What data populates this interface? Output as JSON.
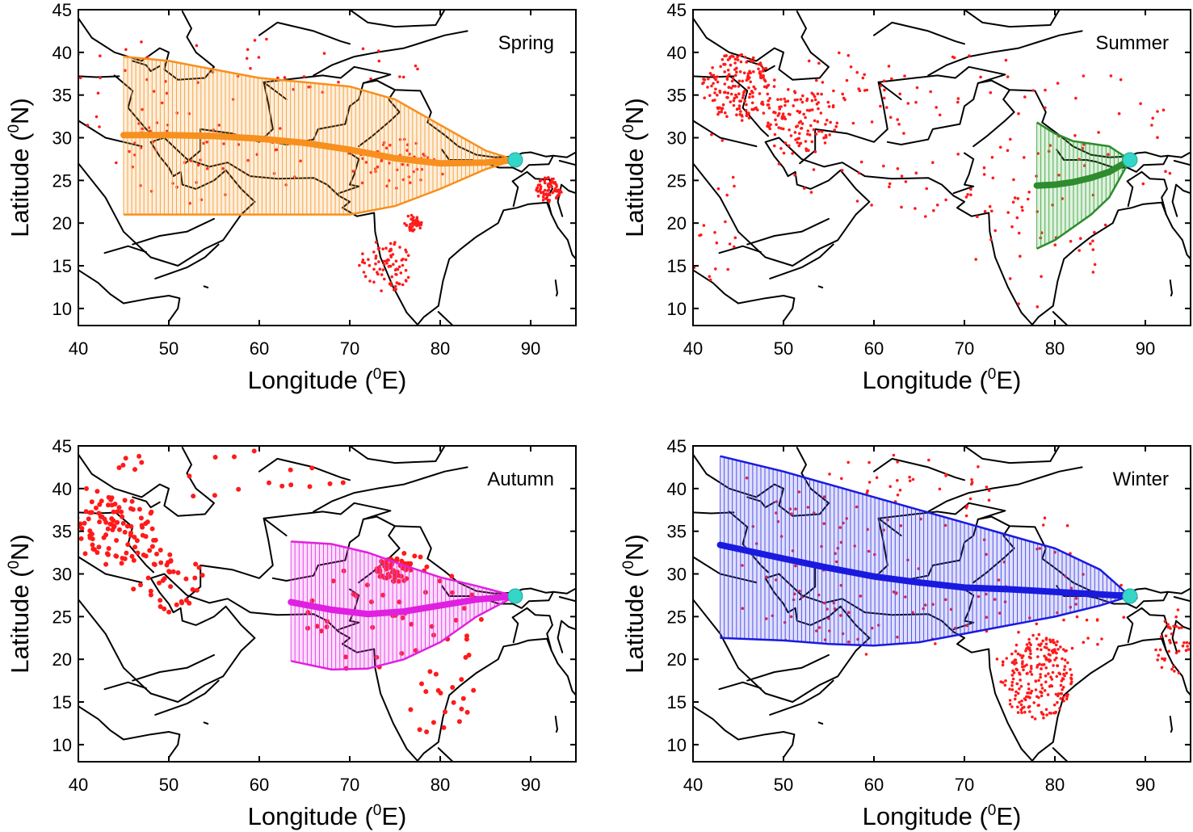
{
  "colors": {
    "fire_points": "#ff1a1a",
    "receptor_site": "#33d6c8",
    "coastline": "#000000"
  },
  "axis_labels": {
    "x_prefix": "Longitude (",
    "x_sup": "0",
    "x_suffix": "E)",
    "y_prefix": "Latitude (",
    "y_sup": "0",
    "y_suffix": "N)"
  },
  "chart_data": [
    {
      "type": "line",
      "title": "Spring",
      "xlim": [
        40,
        95
      ],
      "ylim": [
        8,
        45
      ],
      "xticks": [
        40,
        50,
        60,
        70,
        80,
        90
      ],
      "yticks": [
        10,
        15,
        20,
        25,
        30,
        35,
        40,
        45
      ],
      "color": "#f7901e",
      "error_fill": "#f7a445",
      "receptor": {
        "lon": 88.3,
        "lat": 27.4
      },
      "series": [
        {
          "x": [
            45,
            50,
            55,
            60,
            65,
            70,
            75,
            80,
            85,
            88.3
          ],
          "y": [
            30.3,
            30.3,
            30.2,
            29.9,
            29.4,
            28.6,
            27.6,
            27.0,
            27.1,
            27.4
          ],
          "upper": [
            39.5,
            39.0,
            38.0,
            37.0,
            36.5,
            36.0,
            34.5,
            31.5,
            28.5,
            27.4
          ],
          "lower": [
            21.0,
            21.0,
            21.0,
            21.0,
            21.0,
            21.0,
            22.0,
            24.0,
            26.3,
            27.4
          ]
        }
      ]
    },
    {
      "type": "line",
      "title": "Summer",
      "xlim": [
        40,
        95
      ],
      "ylim": [
        8,
        45
      ],
      "xticks": [
        40,
        50,
        60,
        70,
        80,
        90
      ],
      "yticks": [
        10,
        15,
        20,
        25,
        30,
        35,
        40,
        45
      ],
      "color": "#2e8b2e",
      "error_fill": "#4caf4c",
      "receptor": {
        "lon": 88.3,
        "lat": 27.4
      },
      "series": [
        {
          "x": [
            78,
            80,
            82,
            84,
            86,
            88.3
          ],
          "y": [
            24.4,
            24.5,
            24.8,
            25.3,
            26.0,
            27.4
          ],
          "upper": [
            31.8,
            30.5,
            29.6,
            29.3,
            29.0,
            27.4
          ],
          "lower": [
            17.0,
            18.0,
            19.5,
            21.0,
            23.0,
            27.4
          ]
        }
      ]
    },
    {
      "type": "line",
      "title": "Autumn",
      "xlim": [
        40,
        95
      ],
      "ylim": [
        8,
        45
      ],
      "xticks": [
        40,
        50,
        60,
        70,
        80,
        90
      ],
      "yticks": [
        10,
        15,
        20,
        25,
        30,
        35,
        40,
        45
      ],
      "color": "#e020e0",
      "error_fill": "#ea48ea",
      "receptor": {
        "lon": 88.3,
        "lat": 27.4
      },
      "series": [
        {
          "x": [
            63.5,
            68,
            72,
            76,
            80,
            84,
            88.3
          ],
          "y": [
            26.7,
            25.8,
            25.3,
            25.6,
            26.3,
            27.0,
            27.4
          ],
          "upper": [
            33.8,
            33.5,
            32.5,
            31.0,
            29.6,
            28.6,
            27.4
          ],
          "lower": [
            19.8,
            18.8,
            18.9,
            20.0,
            22.0,
            25.0,
            27.4
          ]
        }
      ]
    },
    {
      "type": "line",
      "title": "Winter",
      "xlim": [
        40,
        95
      ],
      "ylim": [
        8,
        45
      ],
      "xticks": [
        40,
        50,
        60,
        70,
        80,
        90
      ],
      "yticks": [
        10,
        15,
        20,
        25,
        30,
        35,
        40,
        45
      ],
      "color": "#1a1adf",
      "error_fill": "#5555ee",
      "receptor": {
        "lon": 88.3,
        "lat": 27.4
      },
      "series": [
        {
          "x": [
            43,
            50,
            55,
            60,
            65,
            70,
            75,
            80,
            85,
            88.3
          ],
          "y": [
            33.4,
            31.8,
            30.7,
            29.7,
            29.0,
            28.4,
            28.2,
            27.9,
            27.6,
            27.4
          ],
          "upper": [
            43.8,
            42.0,
            40.5,
            39.0,
            37.5,
            36.0,
            34.5,
            33.0,
            30.5,
            27.4
          ],
          "lower": [
            22.5,
            22.2,
            21.8,
            21.6,
            22.0,
            23.0,
            24.0,
            25.0,
            26.3,
            27.4
          ]
        }
      ]
    }
  ]
}
